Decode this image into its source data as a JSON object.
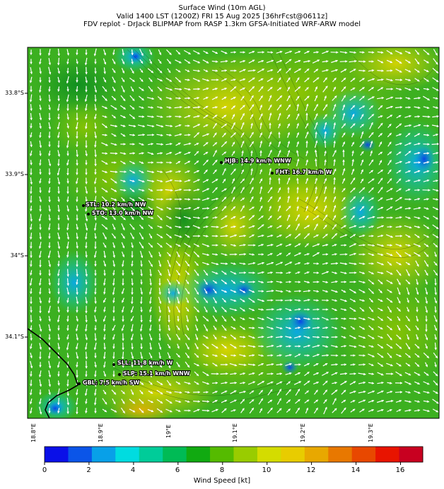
{
  "title": {
    "line1": "Surface Wind (10m AGL)",
    "line2": "Valid 1400 LST (1200Z) FRI 15 Aug 2025 [36hrFcst@0611z]",
    "line3": "FDV replot - DrJack BLIPMAP from RASP 1.3km GFSA-Initiated WRF-ARW model"
  },
  "map": {
    "lat_labels": [
      "33.8°S",
      "33.9°S",
      "34°S",
      "34.1°S"
    ],
    "lon_labels": [
      "18.8°E",
      "18.9°E",
      "19°E",
      "19.1°E",
      "19.2°E",
      "19.3°E"
    ],
    "stations": [
      {
        "id": "HJB",
        "label": "HJB: 14.9 km/h WNW",
        "speed_kmh": 14.9,
        "dir": "WNW"
      },
      {
        "id": "FHT",
        "label": "FHT: 16.7 km/h W",
        "speed_kmh": 16.7,
        "dir": "W"
      },
      {
        "id": "STL",
        "label": "STL: 10.2 km/h NW",
        "speed_kmh": 10.2,
        "dir": "NW"
      },
      {
        "id": "STO",
        "label": "STO: 13.0 km/h NW",
        "speed_kmh": 13.0,
        "dir": "NW"
      },
      {
        "id": "SLL",
        "label": "SLL: 11.8 km/h W",
        "speed_kmh": 11.8,
        "dir": "W"
      },
      {
        "id": "SLP",
        "label": "SLP: 15.1 km/h WNW",
        "speed_kmh": 15.1,
        "dir": "WNW"
      },
      {
        "id": "GBL",
        "label": "GBL: 7.5 km/h SW",
        "speed_kmh": 7.5,
        "dir": "SW"
      }
    ]
  },
  "colorbar": {
    "label": "Wind Speed [kt]",
    "ticks": [
      "0",
      "2",
      "4",
      "6",
      "8",
      "10",
      "12",
      "14",
      "16"
    ],
    "colors": [
      "#0a10e8",
      "#0b55e8",
      "#08a0e8",
      "#00dce0",
      "#00cc99",
      "#00bb55",
      "#11aa11",
      "#55bb00",
      "#99cc00",
      "#d4dc00",
      "#e8cc00",
      "#e8a800",
      "#e87800",
      "#e84800",
      "#e81400",
      "#c80020"
    ]
  }
}
